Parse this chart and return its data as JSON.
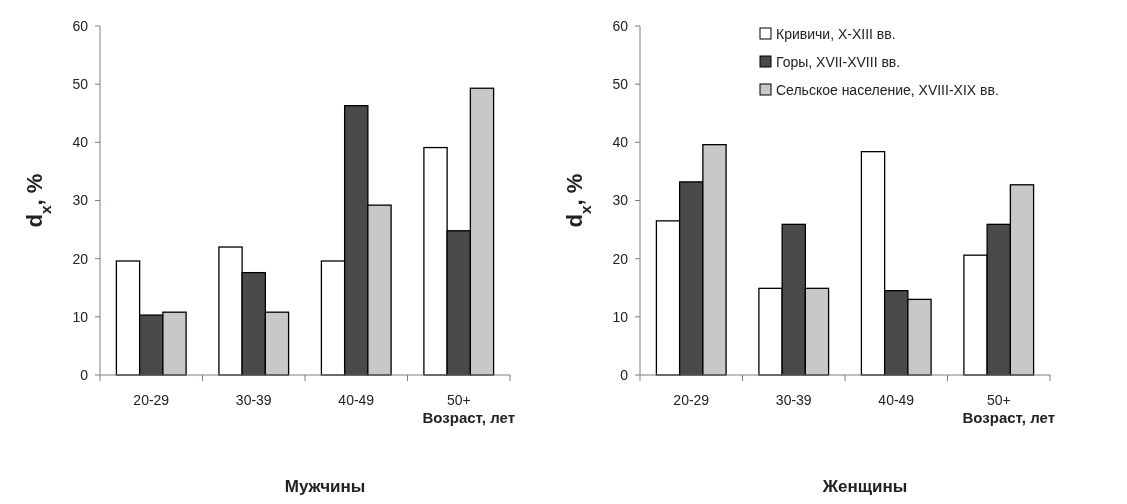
{
  "chart_data": [
    {
      "type": "bar",
      "title": "Мужчины",
      "xlabel": "Возраст, лет",
      "ylabel": "d$_{x}$, %",
      "categories": [
        "20-29",
        "30-39",
        "40-49",
        "50+"
      ],
      "ylim": [
        0,
        60
      ],
      "yticks": [
        0,
        10,
        20,
        30,
        40,
        50,
        60
      ],
      "grid": false,
      "legend": false,
      "series": [
        {
          "color": "#ffffff",
          "values": [
            19.6,
            22.0,
            19.6,
            39.1
          ]
        },
        {
          "color": "#4a4a4a",
          "values": [
            10.3,
            17.6,
            46.3,
            24.8
          ]
        },
        {
          "color": "#c8c8c8",
          "values": [
            10.8,
            10.8,
            29.2,
            49.3
          ]
        }
      ]
    },
    {
      "type": "bar",
      "title": "Женщины",
      "xlabel": "Возраст, лет",
      "ylabel": "d$_{x}$, %",
      "categories": [
        "20-29",
        "30-39",
        "40-49",
        "50+"
      ],
      "ylim": [
        0,
        60
      ],
      "yticks": [
        0,
        10,
        20,
        30,
        40,
        50,
        60
      ],
      "grid": false,
      "legend": "top right",
      "series": [
        {
          "name": "Кривичи, X-XIII вв.",
          "color": "#ffffff",
          "values": [
            26.5,
            14.9,
            38.4,
            20.6
          ]
        },
        {
          "name": "Горы, XVII-XVIII вв.",
          "color": "#4a4a4a",
          "values": [
            33.2,
            25.9,
            14.5,
            25.9
          ]
        },
        {
          "name": "Сельское население, XVIII-XIX вв.",
          "color": "#c8c8c8",
          "values": [
            39.6,
            14.9,
            13.0,
            32.7
          ]
        }
      ]
    }
  ]
}
